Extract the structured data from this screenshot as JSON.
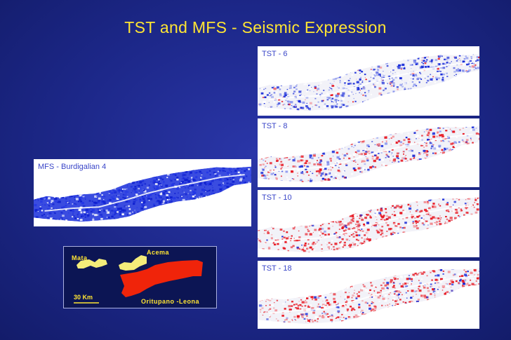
{
  "title": "TST and MFS - Seismic Expression",
  "colors": {
    "background": "#1c2788",
    "title": "#ffe533",
    "blue_amplitude": "#1528d8",
    "red_amplitude": "#e8141e",
    "map_yellow": "#f4ec7a",
    "map_red": "#f0240a"
  },
  "panels": [
    {
      "id": "mfs",
      "label": "MFS - Burdigalian 4",
      "dominant": "blue",
      "intensity": 0.95,
      "red_share": 0.0
    },
    {
      "id": "tst6",
      "label": "TST - 6",
      "dominant": "blue",
      "intensity": 0.55,
      "red_share": 0.12
    },
    {
      "id": "tst8",
      "label": "TST - 8",
      "dominant": "mixed",
      "intensity": 0.6,
      "red_share": 0.55
    },
    {
      "id": "tst10",
      "label": "TST - 10",
      "dominant": "red",
      "intensity": 0.85,
      "red_share": 0.92
    },
    {
      "id": "tst18",
      "label": "TST - 18",
      "dominant": "red",
      "intensity": 0.65,
      "red_share": 0.8
    }
  ],
  "map": {
    "labels": {
      "mata": "Mata",
      "acema": "Acema",
      "oritupano": "Oritupano  -Leona"
    },
    "scale": "30 Km"
  }
}
